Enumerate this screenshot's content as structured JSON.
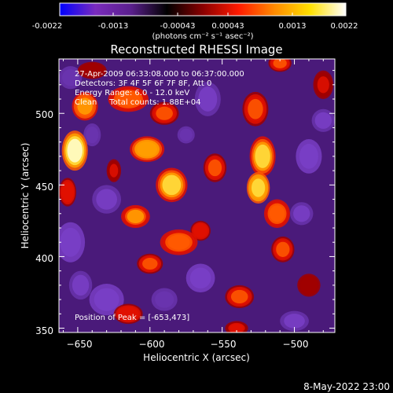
{
  "colorbar": {
    "ticks": [
      "-0.0022",
      "-0.0013",
      "-0.00043",
      "0.00043",
      "0.0013",
      "0.0022"
    ],
    "units": "(photons cm⁻² s⁻¹ asec⁻²)"
  },
  "annotations": {
    "time_range": "27-Apr-2009 06:33:08.000 to 06:37:00.000",
    "detectors": "Detectors: 3F 4F 5F 6F 7F 8F, Att 0",
    "energy_range": "Energy Range: 6.0 - 12.0 keV",
    "clean_counts": "Clean     Total counts: 1.88E+04",
    "peak": "Position of Peak = [-653,473]"
  },
  "footer": {
    "date": "8-May-2022 23:00"
  },
  "colors": {
    "background": "#000000",
    "text": "#ffffff"
  },
  "chart_data": {
    "type": "heatmap",
    "title": "Reconstructed RHESSI Image",
    "xlabel": "Heliocentric X (arcsec)",
    "ylabel": "Heliocentric Y (arcsec)",
    "xlim": [
      -663,
      -472
    ],
    "ylim": [
      347,
      538
    ],
    "x_ticks": [
      -650,
      -600,
      -550,
      -500
    ],
    "y_ticks": [
      350,
      400,
      450,
      500
    ],
    "x_tick_labels": [
      "−650",
      "−600",
      "−550",
      "−500"
    ],
    "y_tick_labels": [
      "350",
      "400",
      "450",
      "500"
    ],
    "colorbar_range": [
      -0.0022,
      0.0022
    ],
    "peak_position": [
      -653,
      473
    ],
    "colormap": [
      "#0000ff",
      "#7a2bbd",
      "#5a1f8c",
      "#000000",
      "#8a0000",
      "#ff1a00",
      "#ff8a00",
      "#ffe000",
      "#ffffff"
    ],
    "blobs": [
      {
        "x": -652,
        "y": 474,
        "v": 0.0022,
        "rx": 9,
        "ry": 14
      },
      {
        "x": -645,
        "y": 505,
        "v": 0.0014,
        "rx": 9,
        "ry": 10
      },
      {
        "x": -657,
        "y": 445,
        "v": 0.0009,
        "rx": 6,
        "ry": 10
      },
      {
        "x": -615,
        "y": 510,
        "v": 0.0012,
        "rx": 14,
        "ry": 9
      },
      {
        "x": -590,
        "y": 500,
        "v": 0.0011,
        "rx": 10,
        "ry": 8
      },
      {
        "x": -602,
        "y": 475,
        "v": 0.0015,
        "rx": 12,
        "ry": 9
      },
      {
        "x": -585,
        "y": 450,
        "v": 0.0017,
        "rx": 11,
        "ry": 12
      },
      {
        "x": -555,
        "y": 462,
        "v": 0.001,
        "rx": 8,
        "ry": 10
      },
      {
        "x": -610,
        "y": 428,
        "v": 0.0013,
        "rx": 10,
        "ry": 8
      },
      {
        "x": -580,
        "y": 410,
        "v": 0.0012,
        "rx": 13,
        "ry": 9
      },
      {
        "x": -600,
        "y": 395,
        "v": 0.001,
        "rx": 9,
        "ry": 7
      },
      {
        "x": -565,
        "y": 418,
        "v": 0.0009,
        "rx": 7,
        "ry": 7
      },
      {
        "x": -527,
        "y": 503,
        "v": 0.0011,
        "rx": 9,
        "ry": 12
      },
      {
        "x": -522,
        "y": 470,
        "v": 0.0017,
        "rx": 9,
        "ry": 14
      },
      {
        "x": -525,
        "y": 448,
        "v": 0.0018,
        "rx": 8,
        "ry": 11
      },
      {
        "x": -512,
        "y": 430,
        "v": 0.0012,
        "rx": 9,
        "ry": 10
      },
      {
        "x": -508,
        "y": 405,
        "v": 0.001,
        "rx": 8,
        "ry": 9
      },
      {
        "x": -480,
        "y": 520,
        "v": 0.0007,
        "rx": 7,
        "ry": 10
      },
      {
        "x": -510,
        "y": 535,
        "v": 0.001,
        "rx": 8,
        "ry": 6
      },
      {
        "x": -615,
        "y": 360,
        "v": 0.0009,
        "rx": 10,
        "ry": 7
      },
      {
        "x": -538,
        "y": 372,
        "v": 0.001,
        "rx": 10,
        "ry": 8
      },
      {
        "x": -540,
        "y": 350,
        "v": 0.0008,
        "rx": 8,
        "ry": 5
      },
      {
        "x": -490,
        "y": 380,
        "v": 0.0006,
        "rx": 8,
        "ry": 8
      },
      {
        "x": -640,
        "y": 530,
        "v": 0.0006,
        "rx": 10,
        "ry": 6
      },
      {
        "x": -625,
        "y": 460,
        "v": 0.0007,
        "rx": 5,
        "ry": 8
      },
      {
        "x": -655,
        "y": 410,
        "v": -0.0015,
        "rx": 10,
        "ry": 14
      },
      {
        "x": -630,
        "y": 440,
        "v": -0.0013,
        "rx": 10,
        "ry": 10
      },
      {
        "x": -630,
        "y": 370,
        "v": -0.0014,
        "rx": 12,
        "ry": 11
      },
      {
        "x": -648,
        "y": 380,
        "v": -0.0012,
        "rx": 8,
        "ry": 10
      },
      {
        "x": -560,
        "y": 510,
        "v": -0.0013,
        "rx": 9,
        "ry": 12
      },
      {
        "x": -565,
        "y": 385,
        "v": -0.0014,
        "rx": 10,
        "ry": 10
      },
      {
        "x": -490,
        "y": 470,
        "v": -0.0016,
        "rx": 9,
        "ry": 12
      },
      {
        "x": -495,
        "y": 430,
        "v": -0.0012,
        "rx": 8,
        "ry": 8
      },
      {
        "x": -480,
        "y": 495,
        "v": -0.0012,
        "rx": 8,
        "ry": 8
      },
      {
        "x": -590,
        "y": 370,
        "v": -0.0011,
        "rx": 9,
        "ry": 8
      },
      {
        "x": -640,
        "y": 485,
        "v": -0.001,
        "rx": 6,
        "ry": 8
      },
      {
        "x": -575,
        "y": 485,
        "v": -0.0009,
        "rx": 6,
        "ry": 6
      },
      {
        "x": -500,
        "y": 355,
        "v": -0.0012,
        "rx": 10,
        "ry": 7
      },
      {
        "x": -655,
        "y": 525,
        "v": -0.001,
        "rx": 8,
        "ry": 8
      }
    ]
  }
}
